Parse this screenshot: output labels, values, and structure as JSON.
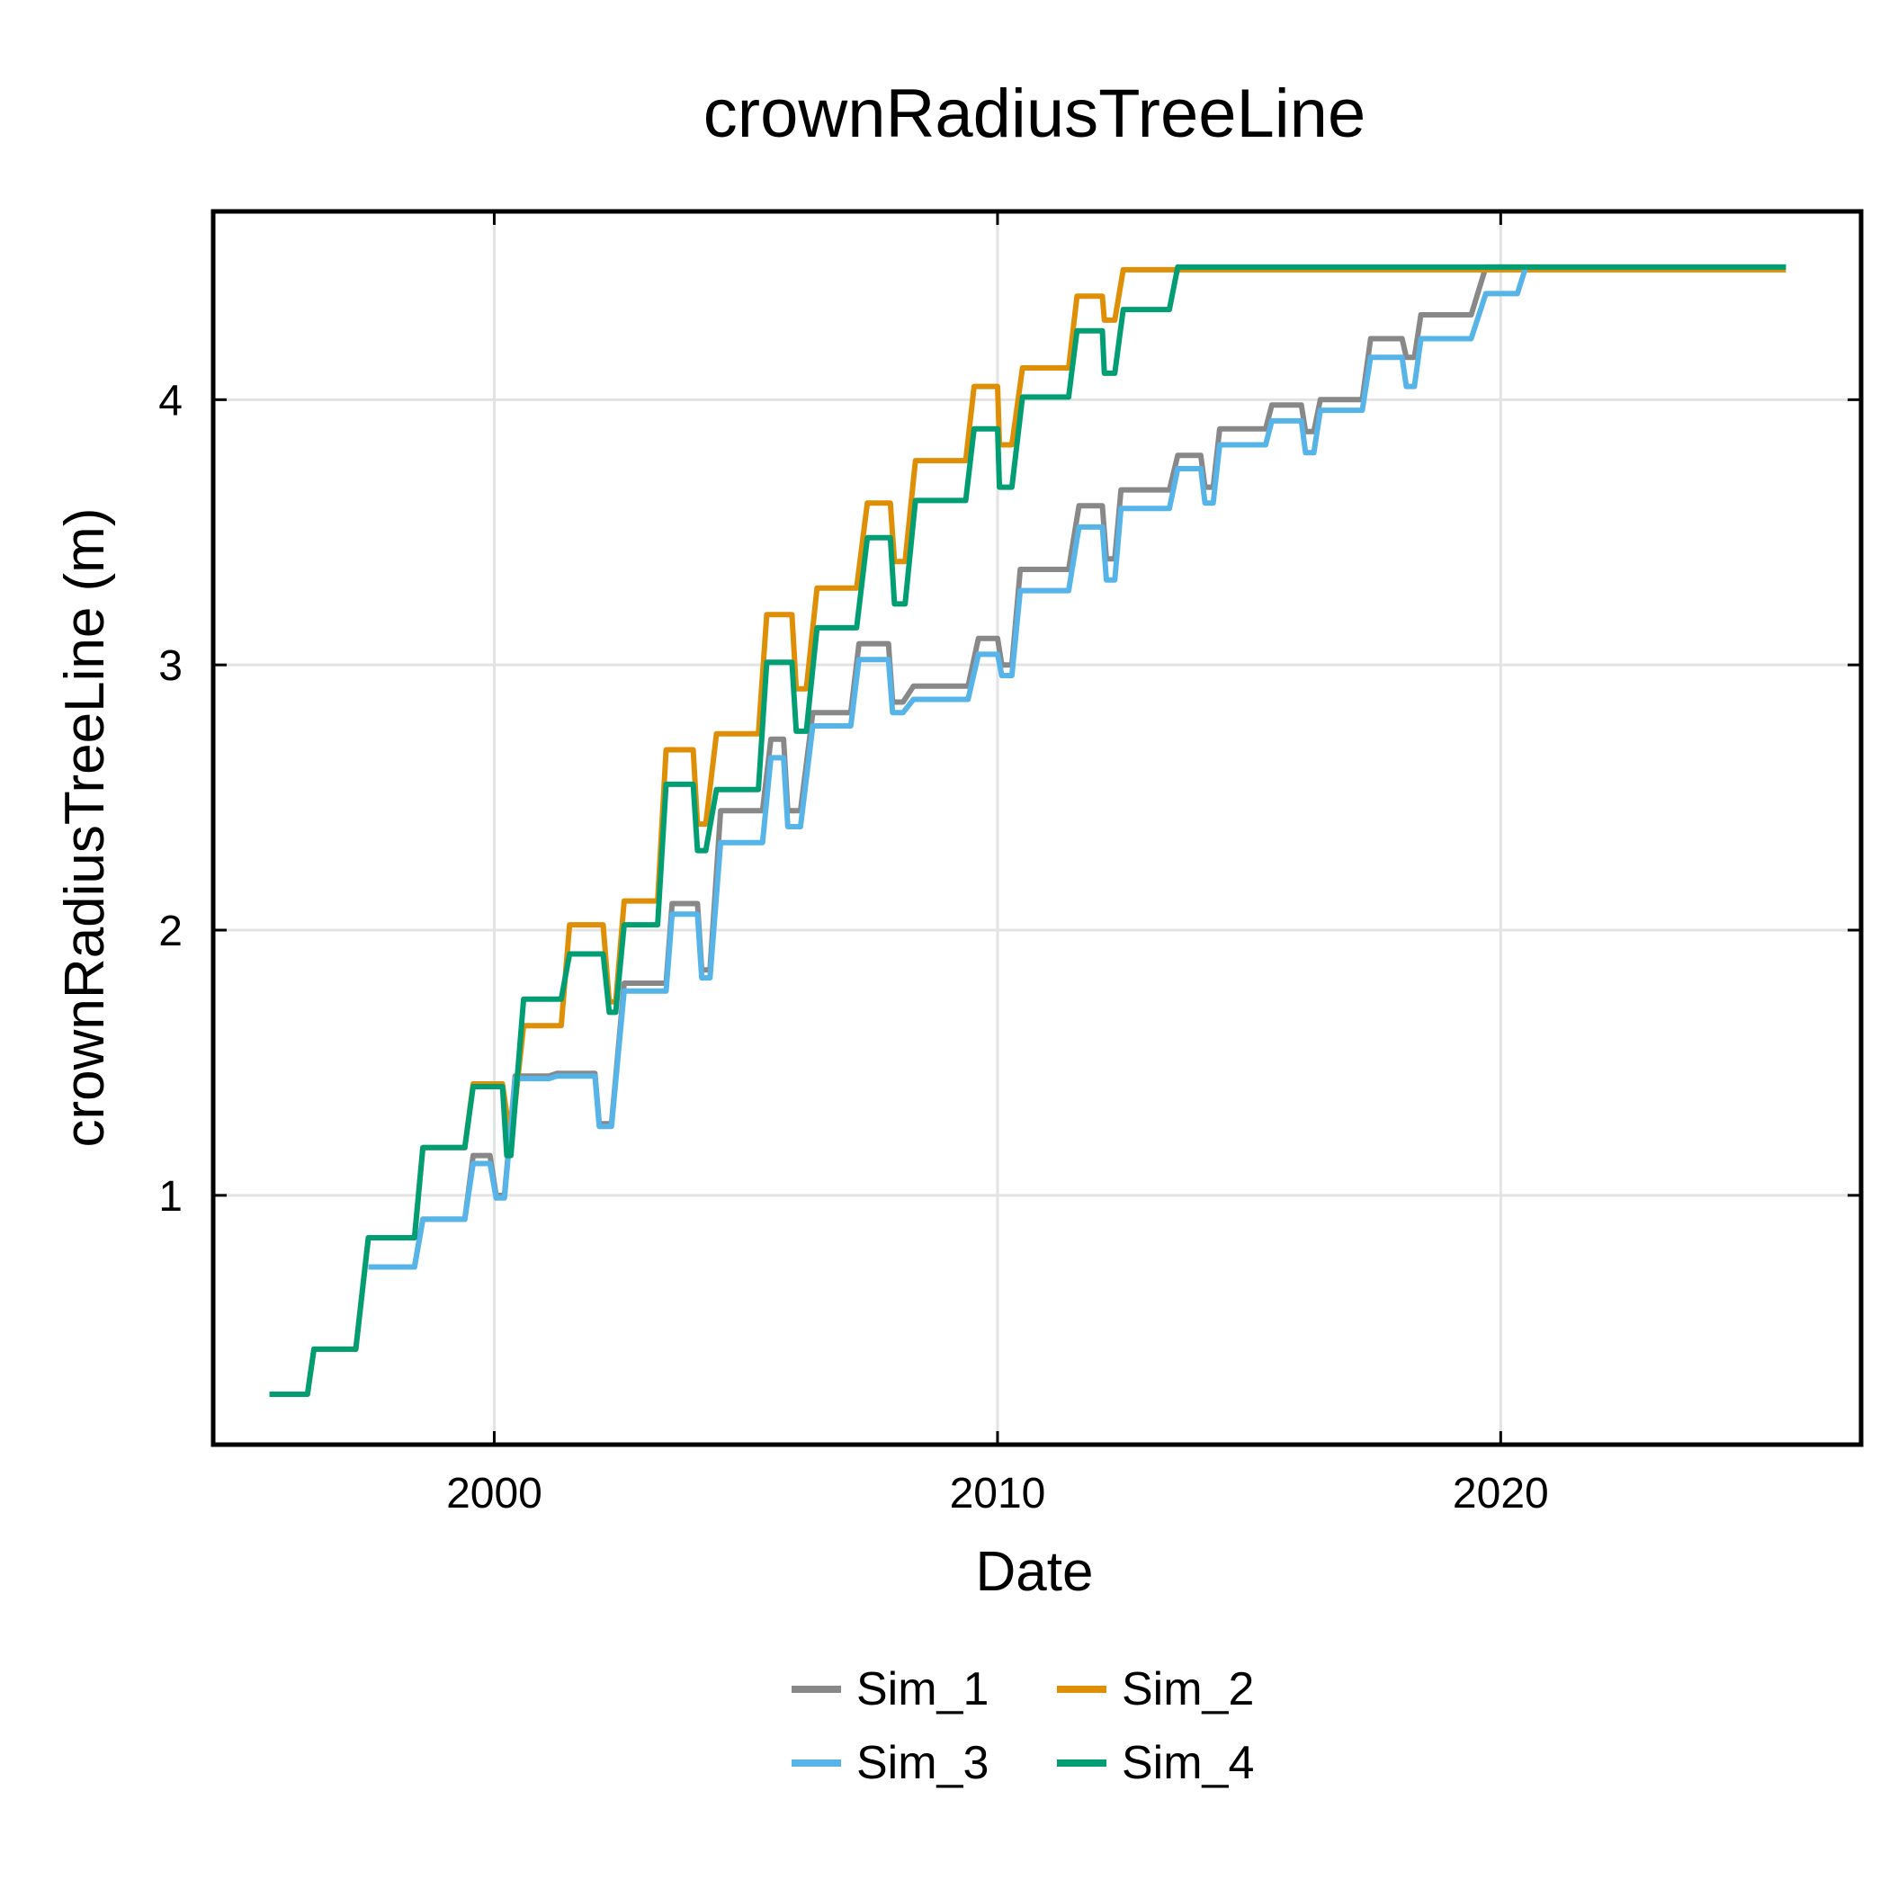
{
  "chart_data": {
    "type": "line",
    "title": "crownRadiusTreeLine",
    "xlabel": "Date",
    "ylabel": "crownRadiusTreeLine (m)",
    "xlim": [
      "1994-06-01",
      "2027-03-01"
    ],
    "ylim": [
      0.06,
      4.71
    ],
    "x_ticks": [
      "2000",
      "2010",
      "2020"
    ],
    "y_ticks": [
      "1",
      "2",
      "3",
      "4"
    ],
    "grid": true,
    "legend_position": "bottom",
    "series": [
      {
        "name": "Sim_1",
        "color": "#888888",
        "points": [
          [
            "1997-07-01",
            0.73
          ],
          [
            "1998-06-01",
            0.73
          ],
          [
            "1998-08-01",
            0.91
          ],
          [
            "1999-06-01",
            0.91
          ],
          [
            "1999-08-01",
            1.15
          ],
          [
            "1999-12-01",
            1.15
          ],
          [
            "2000-01-15",
            1.0
          ],
          [
            "2000-03-15",
            1.0
          ],
          [
            "2000-06-01",
            1.45
          ],
          [
            "2001-02-01",
            1.45
          ],
          [
            "2001-04-01",
            1.46
          ],
          [
            "2002-01-01",
            1.46
          ],
          [
            "2002-02-01",
            1.27
          ],
          [
            "2002-05-01",
            1.27
          ],
          [
            "2002-08-01",
            1.8
          ],
          [
            "2003-06-01",
            1.8
          ],
          [
            "2003-07-15",
            2.1
          ],
          [
            "2004-01-15",
            2.1
          ],
          [
            "2004-02-15",
            1.85
          ],
          [
            "2004-04-15",
            1.85
          ],
          [
            "2004-07-01",
            2.45
          ],
          [
            "2005-05-01",
            2.45
          ],
          [
            "2005-07-01",
            2.72
          ],
          [
            "2005-10-01",
            2.72
          ],
          [
            "2005-11-01",
            2.45
          ],
          [
            "2006-02-01",
            2.45
          ],
          [
            "2006-05-01",
            2.82
          ],
          [
            "2007-02-01",
            2.82
          ],
          [
            "2007-04-01",
            3.08
          ],
          [
            "2007-11-01",
            3.08
          ],
          [
            "2007-12-01",
            2.86
          ],
          [
            "2008-02-15",
            2.86
          ],
          [
            "2008-05-01",
            2.92
          ],
          [
            "2009-06-01",
            2.92
          ],
          [
            "2009-08-15",
            3.1
          ],
          [
            "2010-01-01",
            3.1
          ],
          [
            "2010-02-01",
            3.0
          ],
          [
            "2010-04-15",
            3.0
          ],
          [
            "2010-06-15",
            3.36
          ],
          [
            "2011-06-01",
            3.36
          ],
          [
            "2011-08-15",
            3.6
          ],
          [
            "2012-02-01",
            3.6
          ],
          [
            "2012-03-01",
            3.4
          ],
          [
            "2012-05-01",
            3.4
          ],
          [
            "2012-06-15",
            3.66
          ],
          [
            "2013-06-01",
            3.66
          ],
          [
            "2013-08-01",
            3.79
          ],
          [
            "2014-01-15",
            3.79
          ],
          [
            "2014-02-15",
            3.67
          ],
          [
            "2014-04-15",
            3.67
          ],
          [
            "2014-06-01",
            3.89
          ],
          [
            "2015-05-01",
            3.89
          ],
          [
            "2015-06-15",
            3.98
          ],
          [
            "2016-01-15",
            3.98
          ],
          [
            "2016-02-15",
            3.88
          ],
          [
            "2016-04-15",
            3.88
          ],
          [
            "2016-06-01",
            4.0
          ],
          [
            "2017-04-01",
            4.0
          ],
          [
            "2017-06-01",
            4.23
          ],
          [
            "2018-01-15",
            4.23
          ],
          [
            "2018-02-15",
            4.16
          ],
          [
            "2018-04-15",
            4.16
          ],
          [
            "2018-06-01",
            4.32
          ],
          [
            "2019-06-01",
            4.32
          ],
          [
            "2019-09-15",
            4.5
          ],
          [
            "2025-09-01",
            4.5
          ]
        ]
      },
      {
        "name": "Sim_2",
        "color": "#DE8F05",
        "points": [
          [
            "1995-07-15",
            0.25
          ],
          [
            "1996-04-15",
            0.25
          ],
          [
            "1996-06-01",
            0.42
          ],
          [
            "1997-04-01",
            0.42
          ],
          [
            "1997-07-01",
            0.84
          ],
          [
            "1998-06-01",
            0.84
          ],
          [
            "1998-08-01",
            1.18
          ],
          [
            "1999-06-01",
            1.18
          ],
          [
            "1999-08-01",
            1.42
          ],
          [
            "2000-03-01",
            1.42
          ],
          [
            "2000-05-01",
            1.2
          ],
          [
            "2000-08-01",
            1.64
          ],
          [
            "2001-05-01",
            1.64
          ],
          [
            "2001-07-01",
            2.02
          ],
          [
            "2002-03-01",
            2.02
          ],
          [
            "2002-04-15",
            1.73
          ],
          [
            "2002-06-01",
            1.73
          ],
          [
            "2002-08-01",
            2.11
          ],
          [
            "2003-04-01",
            2.11
          ],
          [
            "2003-06-01",
            2.68
          ],
          [
            "2003-12-15",
            2.68
          ],
          [
            "2004-01-15",
            2.4
          ],
          [
            "2004-03-15",
            2.4
          ],
          [
            "2004-06-01",
            2.74
          ],
          [
            "2005-04-01",
            2.74
          ],
          [
            "2005-06-01",
            3.19
          ],
          [
            "2005-12-01",
            3.19
          ],
          [
            "2006-01-01",
            2.91
          ],
          [
            "2006-03-15",
            2.91
          ],
          [
            "2006-06-01",
            3.29
          ],
          [
            "2007-03-15",
            3.29
          ],
          [
            "2007-06-01",
            3.61
          ],
          [
            "2007-11-15",
            3.61
          ],
          [
            "2007-12-15",
            3.39
          ],
          [
            "2008-03-01",
            3.39
          ],
          [
            "2008-05-15",
            3.77
          ],
          [
            "2009-05-15",
            3.77
          ],
          [
            "2009-07-15",
            4.05
          ],
          [
            "2010-01-01",
            4.05
          ],
          [
            "2010-01-15",
            3.83
          ],
          [
            "2010-04-15",
            3.83
          ],
          [
            "2010-07-01",
            4.12
          ],
          [
            "2011-06-01",
            4.12
          ],
          [
            "2011-08-01",
            4.39
          ],
          [
            "2012-02-01",
            4.39
          ],
          [
            "2012-02-15",
            4.3
          ],
          [
            "2012-05-01",
            4.3
          ],
          [
            "2012-07-01",
            4.49
          ],
          [
            "2025-09-01",
            4.49
          ]
        ]
      },
      {
        "name": "Sim_3",
        "color": "#56B4E9",
        "points": [
          [
            "1997-07-01",
            0.73
          ],
          [
            "1998-06-01",
            0.73
          ],
          [
            "1998-08-01",
            0.91
          ],
          [
            "1999-06-01",
            0.91
          ],
          [
            "1999-08-01",
            1.12
          ],
          [
            "1999-12-01",
            1.12
          ],
          [
            "2000-01-15",
            0.99
          ],
          [
            "2000-03-15",
            0.99
          ],
          [
            "2000-06-01",
            1.44
          ],
          [
            "2001-02-01",
            1.44
          ],
          [
            "2001-04-01",
            1.45
          ],
          [
            "2002-01-01",
            1.45
          ],
          [
            "2002-02-01",
            1.26
          ],
          [
            "2002-05-01",
            1.26
          ],
          [
            "2002-08-01",
            1.77
          ],
          [
            "2003-06-01",
            1.77
          ],
          [
            "2003-07-15",
            2.06
          ],
          [
            "2004-01-15",
            2.06
          ],
          [
            "2004-02-15",
            1.82
          ],
          [
            "2004-04-15",
            1.82
          ],
          [
            "2004-07-01",
            2.33
          ],
          [
            "2005-05-01",
            2.33
          ],
          [
            "2005-07-01",
            2.65
          ],
          [
            "2005-10-01",
            2.65
          ],
          [
            "2005-11-01",
            2.39
          ],
          [
            "2006-02-01",
            2.39
          ],
          [
            "2006-05-01",
            2.77
          ],
          [
            "2007-02-01",
            2.77
          ],
          [
            "2007-04-01",
            3.02
          ],
          [
            "2007-11-01",
            3.02
          ],
          [
            "2007-12-01",
            2.82
          ],
          [
            "2008-02-15",
            2.82
          ],
          [
            "2008-05-01",
            2.87
          ],
          [
            "2009-06-01",
            2.87
          ],
          [
            "2009-08-15",
            3.04
          ],
          [
            "2010-01-01",
            3.04
          ],
          [
            "2010-02-01",
            2.96
          ],
          [
            "2010-04-15",
            2.96
          ],
          [
            "2010-06-15",
            3.28
          ],
          [
            "2011-06-01",
            3.28
          ],
          [
            "2011-08-15",
            3.52
          ],
          [
            "2012-02-01",
            3.52
          ],
          [
            "2012-03-01",
            3.32
          ],
          [
            "2012-05-01",
            3.32
          ],
          [
            "2012-06-15",
            3.59
          ],
          [
            "2013-06-01",
            3.59
          ],
          [
            "2013-08-01",
            3.74
          ],
          [
            "2014-01-15",
            3.74
          ],
          [
            "2014-02-15",
            3.61
          ],
          [
            "2014-04-15",
            3.61
          ],
          [
            "2014-06-01",
            3.83
          ],
          [
            "2015-05-01",
            3.83
          ],
          [
            "2015-06-15",
            3.92
          ],
          [
            "2016-01-15",
            3.92
          ],
          [
            "2016-02-15",
            3.8
          ],
          [
            "2016-04-15",
            3.8
          ],
          [
            "2016-06-01",
            3.96
          ],
          [
            "2017-04-01",
            3.96
          ],
          [
            "2017-06-01",
            4.16
          ],
          [
            "2018-01-15",
            4.16
          ],
          [
            "2018-02-15",
            4.05
          ],
          [
            "2018-04-15",
            4.05
          ],
          [
            "2018-06-01",
            4.23
          ],
          [
            "2019-06-01",
            4.23
          ],
          [
            "2019-09-15",
            4.4
          ],
          [
            "2020-05-01",
            4.4
          ],
          [
            "2020-07-01",
            4.5
          ]
        ]
      },
      {
        "name": "Sim_4",
        "color": "#029E73",
        "points": [
          [
            "1995-07-15",
            0.25
          ],
          [
            "1996-04-15",
            0.25
          ],
          [
            "1996-06-01",
            0.42
          ],
          [
            "1997-04-01",
            0.42
          ],
          [
            "1997-07-01",
            0.84
          ],
          [
            "1998-06-01",
            0.84
          ],
          [
            "1998-08-01",
            1.18
          ],
          [
            "1999-06-01",
            1.18
          ],
          [
            "1999-08-01",
            1.41
          ],
          [
            "2000-03-01",
            1.41
          ],
          [
            "2000-04-01",
            1.15
          ],
          [
            "2000-05-01",
            1.15
          ],
          [
            "2000-08-01",
            1.74
          ],
          [
            "2001-05-01",
            1.74
          ],
          [
            "2001-07-01",
            1.91
          ],
          [
            "2002-03-01",
            1.91
          ],
          [
            "2002-04-15",
            1.69
          ],
          [
            "2002-06-01",
            1.69
          ],
          [
            "2002-08-01",
            2.02
          ],
          [
            "2003-04-01",
            2.02
          ],
          [
            "2003-06-01",
            2.55
          ],
          [
            "2003-12-15",
            2.55
          ],
          [
            "2004-01-15",
            2.3
          ],
          [
            "2004-03-15",
            2.3
          ],
          [
            "2004-06-01",
            2.53
          ],
          [
            "2005-04-01",
            2.53
          ],
          [
            "2005-06-01",
            3.01
          ],
          [
            "2005-12-01",
            3.01
          ],
          [
            "2006-01-01",
            2.75
          ],
          [
            "2006-03-15",
            2.75
          ],
          [
            "2006-06-01",
            3.14
          ],
          [
            "2007-03-15",
            3.14
          ],
          [
            "2007-06-01",
            3.48
          ],
          [
            "2007-11-15",
            3.48
          ],
          [
            "2007-12-15",
            3.23
          ],
          [
            "2008-03-01",
            3.23
          ],
          [
            "2008-05-15",
            3.62
          ],
          [
            "2009-05-15",
            3.62
          ],
          [
            "2009-07-15",
            3.89
          ],
          [
            "2010-01-01",
            3.89
          ],
          [
            "2010-01-15",
            3.67
          ],
          [
            "2010-04-15",
            3.67
          ],
          [
            "2010-07-01",
            4.01
          ],
          [
            "2011-06-01",
            4.01
          ],
          [
            "2011-08-01",
            4.26
          ],
          [
            "2012-02-01",
            4.26
          ],
          [
            "2012-02-15",
            4.1
          ],
          [
            "2012-05-01",
            4.1
          ],
          [
            "2012-07-01",
            4.34
          ],
          [
            "2013-06-01",
            4.34
          ],
          [
            "2013-08-01",
            4.5
          ],
          [
            "2025-09-01",
            4.5
          ]
        ]
      }
    ]
  }
}
